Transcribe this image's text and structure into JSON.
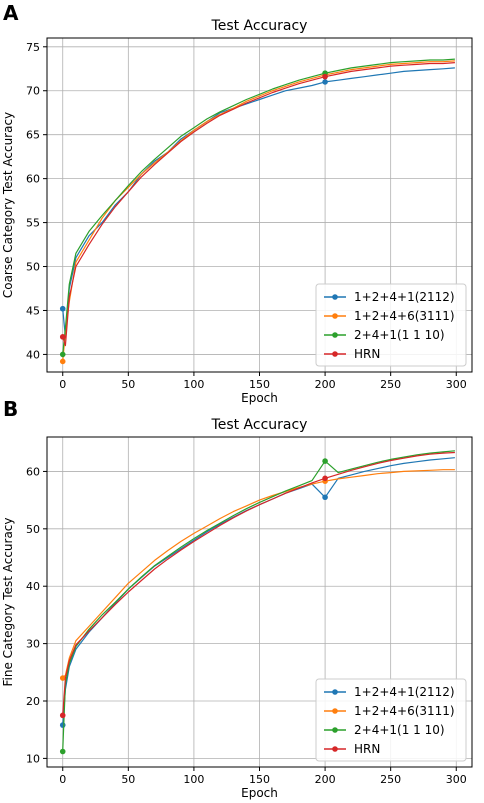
{
  "chart_data": [
    {
      "panel_label": "A",
      "type": "line",
      "title": "Test Accuracy",
      "xlabel": "Epoch",
      "ylabel": "Coarse Category Test Accuracy",
      "xlim": [
        -12,
        312
      ],
      "ylim": [
        38,
        76
      ],
      "xticks": [
        0,
        50,
        100,
        150,
        200,
        250,
        300
      ],
      "yticks": [
        40,
        45,
        50,
        55,
        60,
        65,
        70,
        75
      ],
      "grid": true,
      "legend_position": "lower-right",
      "x": [
        0,
        2,
        5,
        10,
        20,
        30,
        40,
        50,
        60,
        70,
        80,
        90,
        100,
        110,
        120,
        130,
        140,
        150,
        160,
        170,
        180,
        190,
        200,
        210,
        220,
        230,
        240,
        250,
        260,
        270,
        280,
        290,
        299
      ],
      "series": [
        {
          "name": "1+2+4+1(2112)",
          "color": "#1f77b4",
          "values": [
            45.2,
            42.0,
            47.5,
            51.0,
            53.5,
            55.0,
            57.0,
            58.5,
            60.5,
            62.0,
            63.0,
            64.5,
            65.5,
            66.5,
            67.5,
            68.0,
            68.5,
            69.0,
            69.5,
            70.0,
            70.3,
            70.6,
            71.0,
            71.2,
            71.4,
            71.6,
            71.8,
            72.0,
            72.2,
            72.3,
            72.4,
            72.5,
            72.6
          ]
        },
        {
          "name": "1+2+4+6(3111)",
          "color": "#ff7f0e",
          "values": [
            39.2,
            42.5,
            46.0,
            50.5,
            53.0,
            55.5,
            57.5,
            59.0,
            60.5,
            61.8,
            63.0,
            64.3,
            65.5,
            66.5,
            67.3,
            68.0,
            68.8,
            69.4,
            70.0,
            70.5,
            71.0,
            71.4,
            71.8,
            72.1,
            72.4,
            72.6,
            72.8,
            73.0,
            73.1,
            73.2,
            73.3,
            73.3,
            73.4
          ]
        },
        {
          "name": "2+4+1(1 1 10)",
          "color": "#2ca02c",
          "values": [
            40.0,
            43.0,
            48.0,
            51.5,
            54.0,
            55.8,
            57.5,
            59.2,
            60.8,
            62.2,
            63.5,
            64.8,
            65.8,
            66.8,
            67.6,
            68.3,
            69.0,
            69.6,
            70.2,
            70.7,
            71.2,
            71.6,
            72.0,
            72.3,
            72.6,
            72.8,
            73.0,
            73.2,
            73.3,
            73.4,
            73.5,
            73.5,
            73.6
          ]
        },
        {
          "name": "HRN",
          "color": "#d62728",
          "values": [
            42.0,
            41.0,
            46.5,
            50.0,
            52.5,
            54.8,
            56.8,
            58.5,
            60.2,
            61.6,
            62.9,
            64.2,
            65.3,
            66.3,
            67.2,
            67.9,
            68.6,
            69.2,
            69.8,
            70.3,
            70.8,
            71.2,
            71.6,
            71.9,
            72.2,
            72.4,
            72.6,
            72.8,
            72.9,
            73.0,
            73.1,
            73.1,
            73.2
          ]
        }
      ]
    },
    {
      "panel_label": "B",
      "type": "line",
      "title": "Test Accuracy",
      "xlabel": "Epoch",
      "ylabel": "Fine Category Test Accuracy",
      "xlim": [
        -12,
        312
      ],
      "ylim": [
        8.5,
        66
      ],
      "xticks": [
        0,
        50,
        100,
        150,
        200,
        250,
        300
      ],
      "yticks": [
        10,
        20,
        30,
        40,
        50,
        60
      ],
      "grid": true,
      "legend_position": "lower-right",
      "x": [
        0,
        2,
        5,
        10,
        20,
        30,
        40,
        50,
        60,
        70,
        80,
        90,
        100,
        110,
        120,
        130,
        140,
        150,
        160,
        170,
        180,
        190,
        200,
        210,
        220,
        230,
        240,
        250,
        260,
        270,
        280,
        290,
        299
      ],
      "series": [
        {
          "name": "1+2+4+1(2112)",
          "color": "#1f77b4",
          "values": [
            15.8,
            22.0,
            26.0,
            29.0,
            32.0,
            34.5,
            37.0,
            39.5,
            41.5,
            43.5,
            45.0,
            46.5,
            48.0,
            49.5,
            50.8,
            52.0,
            53.2,
            54.2,
            55.2,
            56.2,
            57.0,
            57.8,
            55.5,
            58.8,
            59.4,
            60.0,
            60.5,
            61.0,
            61.4,
            61.7,
            62.0,
            62.2,
            62.4
          ]
        },
        {
          "name": "1+2+4+6(3111)",
          "color": "#ff7f0e",
          "values": [
            24.0,
            24.5,
            27.5,
            30.5,
            33.0,
            35.5,
            38.0,
            40.5,
            42.5,
            44.5,
            46.2,
            47.8,
            49.2,
            50.5,
            51.8,
            53.0,
            54.0,
            55.0,
            55.8,
            56.5,
            57.2,
            57.8,
            58.3,
            58.7,
            59.0,
            59.3,
            59.6,
            59.8,
            60.0,
            60.1,
            60.2,
            60.3,
            60.3
          ]
        },
        {
          "name": "2+4+1(1 1 10)",
          "color": "#2ca02c",
          "values": [
            11.2,
            23.0,
            26.5,
            29.5,
            32.5,
            35.0,
            37.2,
            39.5,
            41.6,
            43.6,
            45.2,
            46.8,
            48.3,
            49.7,
            51.0,
            52.3,
            53.5,
            54.6,
            55.6,
            56.6,
            57.5,
            58.4,
            61.8,
            59.8,
            60.4,
            61.0,
            61.6,
            62.1,
            62.5,
            62.9,
            63.2,
            63.4,
            63.6
          ]
        },
        {
          "name": "HRN",
          "color": "#d62728",
          "values": [
            17.5,
            24.0,
            27.0,
            29.8,
            32.2,
            34.5,
            36.8,
            39.0,
            41.0,
            43.0,
            44.7,
            46.3,
            47.8,
            49.2,
            50.6,
            51.9,
            53.1,
            54.2,
            55.2,
            56.2,
            57.1,
            58.0,
            58.8,
            59.5,
            60.2,
            60.8,
            61.4,
            61.9,
            62.3,
            62.7,
            63.0,
            63.2,
            63.3
          ]
        }
      ]
    }
  ]
}
